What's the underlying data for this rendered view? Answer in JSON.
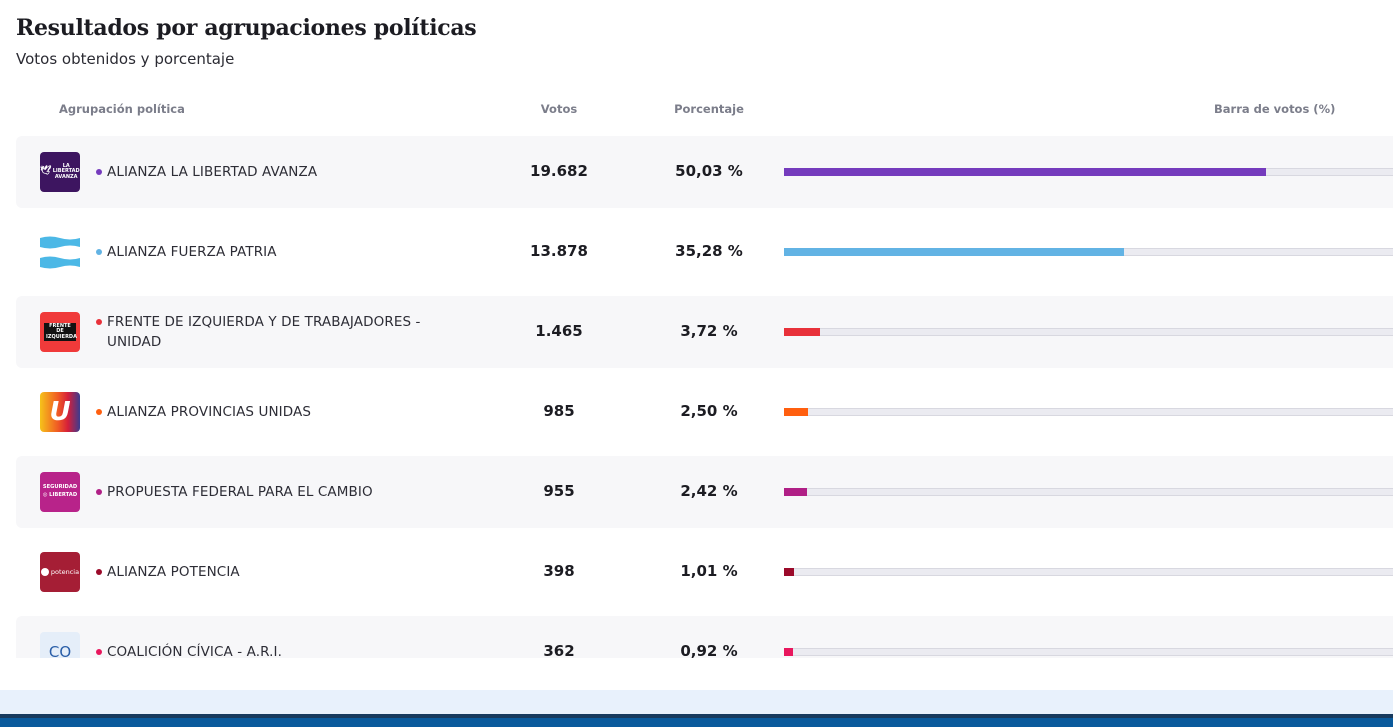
{
  "header": {
    "title": "Resultados por agrupaciones políticas",
    "subtitle": "Votos obtenidos y porcentaje"
  },
  "table": {
    "columns": {
      "party": "Agrupación política",
      "votes": "Votos",
      "percentage": "Porcentaje",
      "bar": "Barra de votos (%)"
    },
    "rows": [
      {
        "name": "ALIANZA LA LIBERTAD AVANZA",
        "votes": "19.682",
        "percentage": "50,03 %",
        "pct_value": 50.03,
        "color": "#753bbd",
        "logo": "la-libertad-avanza-logo",
        "logo_text": "LA LIBERTAD AVANZA"
      },
      {
        "name": "ALIANZA FUERZA PATRIA",
        "votes": "13.878",
        "percentage": "35,28 %",
        "pct_value": 35.28,
        "color": "#62b3e4",
        "logo": "argentine-flag-stripes-logo",
        "logo_text": ""
      },
      {
        "name": "FRENTE DE IZQUIERDA Y DE TRABAJADORES - UNIDAD",
        "votes": "1.465",
        "percentage": "3,72 %",
        "pct_value": 3.72,
        "color": "#e8313a",
        "logo": "frente-de-izquierda-logo",
        "logo_text": "FRENTE DE IZQUIERDA"
      },
      {
        "name": "ALIANZA PROVINCIAS UNIDAS",
        "votes": "985",
        "percentage": "2,50 %",
        "pct_value": 2.5,
        "color": "#ff5f0f",
        "logo": "provincias-unidas-logo",
        "logo_text": "U"
      },
      {
        "name": "PROPUESTA FEDERAL PARA EL CAMBIO",
        "votes": "955",
        "percentage": "2,42 %",
        "pct_value": 2.42,
        "color": "#b01f86",
        "logo": "seguridad-libertad-logo",
        "logo_text": "SEGURIDAD ◎ LIBERTAD"
      },
      {
        "name": "ALIANZA POTENCIA",
        "votes": "398",
        "percentage": "1,01 %",
        "pct_value": 1.01,
        "color": "#9b0a2a",
        "logo": "potencia-logo",
        "logo_text": "potencia"
      },
      {
        "name": "COALICIÓN CÍVICA - A.R.I.",
        "votes": "362",
        "percentage": "0,92 %",
        "pct_value": 0.92,
        "color": "#e8175d",
        "logo": "coalicion-civica-logo",
        "logo_text": "CO"
      }
    ]
  }
}
